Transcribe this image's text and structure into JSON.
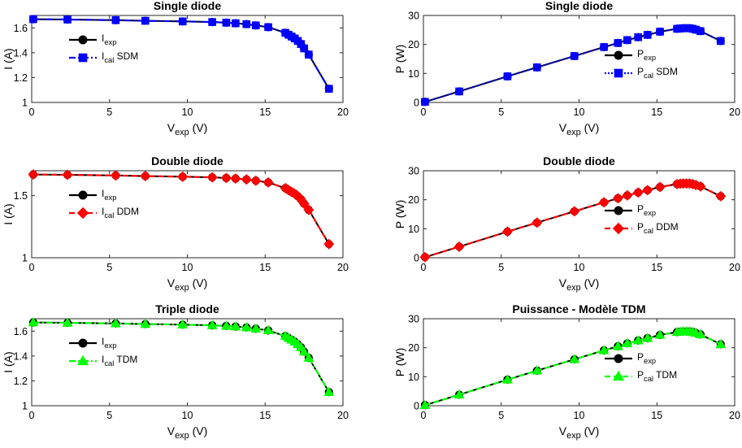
{
  "colors": {
    "exp": "#000000",
    "sdm": "#0000ff",
    "ddm": "#ff0000",
    "tdm": "#00ff00"
  },
  "chart_data": [
    {
      "type": "line",
      "title": "Single diode",
      "xlabel_main": "V",
      "xlabel_sub": "exp",
      "xlabel_unit": " (V)",
      "ylabel": "I (A)",
      "xlim": [
        0,
        20
      ],
      "ylim": [
        1,
        1.7
      ],
      "xticks": [
        0,
        5,
        10,
        15,
        20
      ],
      "yticks": [
        1,
        1.2,
        1.4,
        1.6
      ],
      "yticklabels": [
        "1",
        "1.2",
        "1.4",
        "1.6"
      ],
      "legend_position": "center-left",
      "x": [
        0.1,
        2.3,
        5.4,
        7.3,
        9.7,
        11.6,
        12.5,
        13.1,
        13.8,
        14.4,
        15.2,
        16.3,
        16.5,
        16.7,
        16.9,
        17.1,
        17.3,
        17.5,
        17.8,
        19.1
      ],
      "series": [
        {
          "name_main": "I",
          "name_sub": "exp",
          "name_suffix": "",
          "color_key": "exp",
          "line": "solid",
          "marker": "circle",
          "values": [
            1.67,
            1.667,
            1.662,
            1.657,
            1.652,
            1.647,
            1.642,
            1.637,
            1.63,
            1.62,
            1.606,
            1.56,
            1.545,
            1.53,
            1.515,
            1.495,
            1.47,
            1.435,
            1.385,
            1.11
          ]
        },
        {
          "name_main": "I",
          "name_sub": "cal",
          "name_suffix": " SDM",
          "color_key": "sdm",
          "line": "dashdot",
          "marker": "square",
          "values": [
            1.67,
            1.667,
            1.662,
            1.657,
            1.652,
            1.647,
            1.642,
            1.637,
            1.63,
            1.62,
            1.606,
            1.56,
            1.545,
            1.53,
            1.515,
            1.495,
            1.47,
            1.435,
            1.385,
            1.11
          ]
        }
      ]
    },
    {
      "type": "line",
      "title": "Single diode",
      "xlabel_main": "V",
      "xlabel_sub": "exp",
      "xlabel_unit": " (V)",
      "ylabel": "P (W)",
      "xlim": [
        0,
        20
      ],
      "ylim": [
        0,
        30
      ],
      "xticks": [
        0,
        5,
        10,
        15,
        20
      ],
      "yticks": [
        0,
        10,
        20,
        30
      ],
      "yticklabels": [
        "0",
        "10",
        "20",
        "30"
      ],
      "legend_position": "lower-right",
      "x": [
        0.1,
        2.3,
        5.4,
        7.3,
        9.7,
        11.6,
        12.5,
        13.1,
        13.8,
        14.4,
        15.2,
        16.3,
        16.5,
        16.7,
        16.9,
        17.1,
        17.3,
        17.5,
        17.8,
        19.1
      ],
      "series": [
        {
          "name_main": "P",
          "name_sub": "exp",
          "name_suffix": "",
          "color_key": "exp",
          "line": "solid",
          "marker": "circle",
          "values": [
            0.2,
            3.8,
            9.0,
            12.1,
            16.0,
            19.1,
            20.5,
            21.5,
            22.5,
            23.3,
            24.4,
            25.4,
            25.5,
            25.6,
            25.6,
            25.6,
            25.4,
            25.1,
            24.6,
            21.2
          ]
        },
        {
          "name_main": "P",
          "name_sub": "cal",
          "name_suffix": " SDM",
          "color_key": "sdm",
          "line": "dotted",
          "marker": "square",
          "values": [
            0.2,
            3.8,
            9.0,
            12.1,
            16.0,
            19.1,
            20.5,
            21.5,
            22.5,
            23.3,
            24.4,
            25.4,
            25.5,
            25.6,
            25.6,
            25.6,
            25.4,
            25.1,
            24.6,
            21.2
          ]
        }
      ]
    },
    {
      "type": "line",
      "title": "Double diode",
      "xlabel_main": "V",
      "xlabel_sub": "exp",
      "xlabel_unit": " (V)",
      "ylabel": "I (A)",
      "xlim": [
        0,
        20
      ],
      "ylim": [
        1,
        1.7
      ],
      "xticks": [
        0,
        5,
        10,
        15,
        20
      ],
      "yticks": [
        1,
        1.5
      ],
      "yticklabels": [
        "1",
        "1.5"
      ],
      "legend_position": "center-left",
      "x": [
        0.1,
        2.3,
        5.4,
        7.3,
        9.7,
        11.6,
        12.5,
        13.1,
        13.8,
        14.4,
        15.2,
        16.3,
        16.5,
        16.7,
        16.9,
        17.1,
        17.3,
        17.5,
        17.8,
        19.1
      ],
      "series": [
        {
          "name_main": "I",
          "name_sub": "exp",
          "name_suffix": "",
          "color_key": "exp",
          "line": "solid",
          "marker": "circle",
          "values": [
            1.67,
            1.667,
            1.662,
            1.657,
            1.652,
            1.647,
            1.642,
            1.637,
            1.63,
            1.62,
            1.606,
            1.56,
            1.545,
            1.53,
            1.515,
            1.495,
            1.47,
            1.435,
            1.385,
            1.11
          ]
        },
        {
          "name_main": "I",
          "name_sub": "cal",
          "name_suffix": " DDM",
          "color_key": "ddm",
          "line": "dashed",
          "marker": "diamond",
          "values": [
            1.67,
            1.667,
            1.662,
            1.657,
            1.652,
            1.647,
            1.642,
            1.637,
            1.63,
            1.62,
            1.606,
            1.56,
            1.545,
            1.53,
            1.515,
            1.495,
            1.47,
            1.435,
            1.385,
            1.11
          ]
        }
      ]
    },
    {
      "type": "line",
      "title": "Double diode",
      "xlabel_main": "V",
      "xlabel_sub": "exp",
      "xlabel_unit": " (V)",
      "ylabel": "P (W)",
      "xlim": [
        0,
        20
      ],
      "ylim": [
        0,
        30
      ],
      "xticks": [
        0,
        5,
        10,
        15,
        20
      ],
      "yticks": [
        0,
        10,
        20,
        30
      ],
      "yticklabels": [
        "0",
        "10",
        "20",
        "30"
      ],
      "legend_position": "lower-right",
      "x": [
        0.1,
        2.3,
        5.4,
        7.3,
        9.7,
        11.6,
        12.5,
        13.1,
        13.8,
        14.4,
        15.2,
        16.3,
        16.5,
        16.7,
        16.9,
        17.1,
        17.3,
        17.5,
        17.8,
        19.1
      ],
      "series": [
        {
          "name_main": "P",
          "name_sub": "exp",
          "name_suffix": "",
          "color_key": "exp",
          "line": "solid",
          "marker": "circle",
          "values": [
            0.2,
            3.8,
            9.0,
            12.1,
            16.0,
            19.1,
            20.5,
            21.5,
            22.5,
            23.3,
            24.4,
            25.4,
            25.5,
            25.6,
            25.6,
            25.6,
            25.4,
            25.1,
            24.6,
            21.2
          ]
        },
        {
          "name_main": "P",
          "name_sub": "cal",
          "name_suffix": " DDM",
          "color_key": "ddm",
          "line": "dashed",
          "marker": "diamond",
          "values": [
            0.2,
            3.8,
            9.0,
            12.1,
            16.0,
            19.1,
            20.5,
            21.5,
            22.5,
            23.3,
            24.4,
            25.4,
            25.5,
            25.6,
            25.6,
            25.6,
            25.4,
            25.1,
            24.6,
            21.2
          ]
        }
      ]
    },
    {
      "type": "line",
      "title": "Triple diode",
      "xlabel_main": "V",
      "xlabel_sub": "exp",
      "xlabel_unit": " (V)",
      "ylabel": "I (A)",
      "xlim": [
        0,
        20
      ],
      "ylim": [
        1,
        1.7
      ],
      "xticks": [
        0,
        5,
        10,
        15,
        20
      ],
      "yticks": [
        1,
        1.2,
        1.4,
        1.6
      ],
      "yticklabels": [
        "1",
        "1.2",
        "1.4",
        "1.6"
      ],
      "legend_position": "center-left",
      "x": [
        0.1,
        2.3,
        5.4,
        7.3,
        9.7,
        11.6,
        12.5,
        13.1,
        13.8,
        14.4,
        15.2,
        16.3,
        16.5,
        16.7,
        16.9,
        17.1,
        17.3,
        17.5,
        17.8,
        19.1
      ],
      "series": [
        {
          "name_main": "I",
          "name_sub": "exp",
          "name_suffix": "",
          "color_key": "exp",
          "line": "solid",
          "marker": "circle",
          "values": [
            1.67,
            1.667,
            1.662,
            1.657,
            1.652,
            1.647,
            1.642,
            1.637,
            1.63,
            1.62,
            1.606,
            1.56,
            1.545,
            1.53,
            1.515,
            1.495,
            1.47,
            1.435,
            1.385,
            1.11
          ]
        },
        {
          "name_main": "I",
          "name_sub": "cal",
          "name_suffix": " TDM",
          "color_key": "tdm",
          "line": "dashdot",
          "marker": "triangle",
          "values": [
            1.67,
            1.667,
            1.662,
            1.657,
            1.652,
            1.647,
            1.642,
            1.637,
            1.63,
            1.62,
            1.606,
            1.56,
            1.545,
            1.53,
            1.515,
            1.495,
            1.47,
            1.435,
            1.385,
            1.11
          ]
        }
      ]
    },
    {
      "type": "line",
      "title": "Puissance - Modèle TDM",
      "xlabel_main": "V",
      "xlabel_sub": "exp",
      "xlabel_unit": " (V)",
      "ylabel": "P (W)",
      "xlim": [
        0,
        20
      ],
      "ylim": [
        0,
        30
      ],
      "xticks": [
        0,
        5,
        10,
        15,
        20
      ],
      "yticks": [
        0,
        10,
        20,
        30
      ],
      "yticklabels": [
        "0",
        "10",
        "20",
        "30"
      ],
      "legend_position": "lower-right",
      "x": [
        0.1,
        2.3,
        5.4,
        7.3,
        9.7,
        11.6,
        12.5,
        13.1,
        13.8,
        14.4,
        15.2,
        16.3,
        16.5,
        16.7,
        16.9,
        17.1,
        17.3,
        17.5,
        17.8,
        19.1
      ],
      "series": [
        {
          "name_main": "P",
          "name_sub": "exp",
          "name_suffix": "",
          "color_key": "exp",
          "line": "solid",
          "marker": "circle",
          "values": [
            0.2,
            3.8,
            9.0,
            12.1,
            16.0,
            19.1,
            20.5,
            21.5,
            22.5,
            23.3,
            24.4,
            25.4,
            25.5,
            25.6,
            25.6,
            25.6,
            25.4,
            25.1,
            24.6,
            21.2
          ]
        },
        {
          "name_main": "P",
          "name_sub": "cal",
          "name_suffix": " TDM",
          "color_key": "tdm",
          "line": "dashed",
          "marker": "triangle",
          "values": [
            0.2,
            3.8,
            9.0,
            12.1,
            16.0,
            19.1,
            20.5,
            21.5,
            22.5,
            23.3,
            24.4,
            25.4,
            25.5,
            25.6,
            25.6,
            25.6,
            25.4,
            25.1,
            24.6,
            21.2
          ]
        }
      ]
    }
  ]
}
